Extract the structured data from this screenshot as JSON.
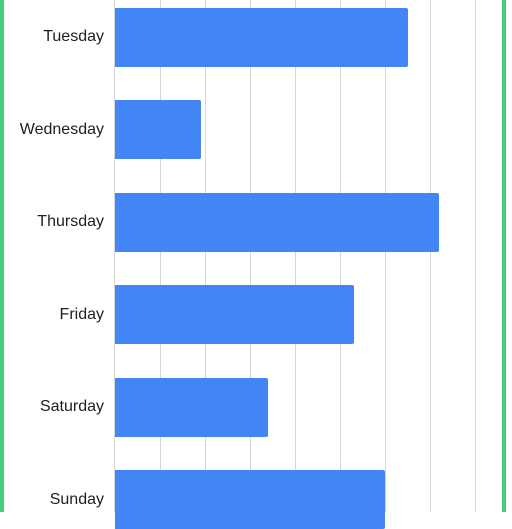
{
  "chart_data": {
    "type": "bar",
    "orientation": "horizontal",
    "categories": [
      "Tuesday",
      "Wednesday",
      "Thursday",
      "Friday",
      "Saturday",
      "Sunday"
    ],
    "values": [
      6.5,
      1.9,
      7.2,
      5.3,
      3.4,
      6.0
    ],
    "xlim": [
      0,
      9
    ],
    "grid": true,
    "colors": {
      "bar": "#4285f4",
      "border_accent": "#44d07b"
    }
  }
}
